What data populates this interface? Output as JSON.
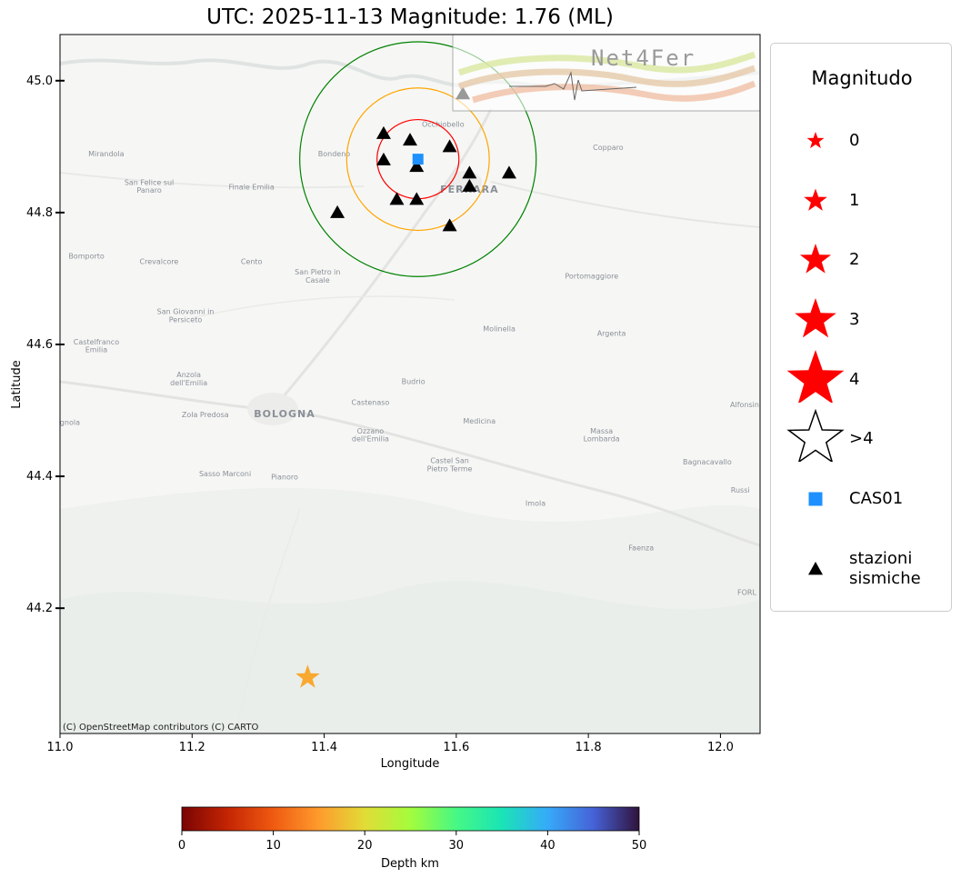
{
  "title": "UTC: 2025-11-13 Magnitude: 1.76 (ML)",
  "axes": {
    "xlabel": "Longitude",
    "ylabel": "Latitude",
    "xlim": [
      11.0,
      12.06
    ],
    "ylim": [
      44.01,
      45.07
    ],
    "xticks": [
      "11.0",
      "11.2",
      "11.4",
      "11.6",
      "11.8",
      "12.0"
    ],
    "xtick_values": [
      11.0,
      11.2,
      11.4,
      11.6,
      11.8,
      12.0
    ],
    "yticks": [
      "44.2",
      "44.4",
      "44.6",
      "44.8",
      "45.0"
    ],
    "ytick_values": [
      44.2,
      44.4,
      44.6,
      44.8,
      45.0
    ]
  },
  "attribution": "(C) OpenStreetMap contributors (C) CARTO",
  "watermark": "Net4Fer",
  "places": [
    {
      "name": "Mirandola",
      "lon": 11.07,
      "lat": 44.885
    },
    {
      "name": "San Felice sul",
      "lon": 11.135,
      "lat": 44.842
    },
    {
      "name": "Panaro",
      "lon": 11.135,
      "lat": 44.83
    },
    {
      "name": "Finale Emilia",
      "lon": 11.29,
      "lat": 44.835
    },
    {
      "name": "Bondeno",
      "lon": 11.415,
      "lat": 44.885
    },
    {
      "name": "Occhiobello",
      "lon": 11.58,
      "lat": 44.93
    },
    {
      "name": "Copparo",
      "lon": 11.83,
      "lat": 44.895
    },
    {
      "name": "Bomporto",
      "lon": 11.04,
      "lat": 44.73
    },
    {
      "name": "Crevalcore",
      "lon": 11.15,
      "lat": 44.722
    },
    {
      "name": "Cento",
      "lon": 11.29,
      "lat": 44.722
    },
    {
      "name": "San Pietro in",
      "lon": 11.39,
      "lat": 44.706
    },
    {
      "name": "Casale",
      "lon": 11.39,
      "lat": 44.694
    },
    {
      "name": "Portomaggiore",
      "lon": 11.805,
      "lat": 44.7
    },
    {
      "name": "San Giovanni in",
      "lon": 11.19,
      "lat": 44.646
    },
    {
      "name": "Persiceto",
      "lon": 11.19,
      "lat": 44.634
    },
    {
      "name": "Molinella",
      "lon": 11.665,
      "lat": 44.62
    },
    {
      "name": "Argenta",
      "lon": 11.835,
      "lat": 44.613
    },
    {
      "name": "Castelfranco",
      "lon": 11.055,
      "lat": 44.6
    },
    {
      "name": "Emilia",
      "lon": 11.055,
      "lat": 44.588
    },
    {
      "name": "Anzola",
      "lon": 11.195,
      "lat": 44.55
    },
    {
      "name": "dell'Emilia",
      "lon": 11.195,
      "lat": 44.538
    },
    {
      "name": "Budrio",
      "lon": 11.535,
      "lat": 44.54
    },
    {
      "name": "Castenaso",
      "lon": 11.47,
      "lat": 44.508
    },
    {
      "name": "Alfonsine",
      "lon": 12.04,
      "lat": 44.505
    },
    {
      "name": "Zola Predosa",
      "lon": 11.22,
      "lat": 44.49
    },
    {
      "name": "Medicina",
      "lon": 11.635,
      "lat": 44.48
    },
    {
      "name": "gnola",
      "lon": 11.015,
      "lat": 44.478
    },
    {
      "name": "Massa",
      "lon": 11.82,
      "lat": 44.465
    },
    {
      "name": "Lombarda",
      "lon": 11.82,
      "lat": 44.453
    },
    {
      "name": "Ozzano",
      "lon": 11.47,
      "lat": 44.465
    },
    {
      "name": "dell'Emilia",
      "lon": 11.47,
      "lat": 44.453
    },
    {
      "name": "Bagnacavallo",
      "lon": 11.98,
      "lat": 44.418
    },
    {
      "name": "Castel San",
      "lon": 11.59,
      "lat": 44.42
    },
    {
      "name": "Pietro Terme",
      "lon": 11.59,
      "lat": 44.408
    },
    {
      "name": "Sasso Marconi",
      "lon": 11.25,
      "lat": 44.4
    },
    {
      "name": "Pianoro",
      "lon": 11.34,
      "lat": 44.395
    },
    {
      "name": "Russi",
      "lon": 12.03,
      "lat": 44.375
    },
    {
      "name": "Imola",
      "lon": 11.72,
      "lat": 44.355
    },
    {
      "name": "Faenza",
      "lon": 11.88,
      "lat": 44.288
    },
    {
      "name": "FORL",
      "lon": 12.04,
      "lat": 44.22
    }
  ],
  "big_places": [
    {
      "name": "BOLOGNA",
      "lon": 11.34,
      "lat": 44.49
    },
    {
      "name": "FERRARA",
      "lon": 11.62,
      "lat": 44.83
    }
  ],
  "stations": [
    {
      "lon": 11.49,
      "lat": 44.92
    },
    {
      "lon": 11.53,
      "lat": 44.91
    },
    {
      "lon": 11.59,
      "lat": 44.9
    },
    {
      "lon": 11.49,
      "lat": 44.88
    },
    {
      "lon": 11.54,
      "lat": 44.87
    },
    {
      "lon": 11.62,
      "lat": 44.86
    },
    {
      "lon": 11.68,
      "lat": 44.86
    },
    {
      "lon": 11.62,
      "lat": 44.84
    },
    {
      "lon": 11.51,
      "lat": 44.82
    },
    {
      "lon": 11.54,
      "lat": 44.82
    },
    {
      "lon": 11.42,
      "lat": 44.8
    },
    {
      "lon": 11.59,
      "lat": 44.78
    },
    {
      "lon": 11.61,
      "lat": 44.98
    }
  ],
  "cas01": {
    "lon": 11.542,
    "lat": 44.881,
    "color": "#1e90ff"
  },
  "circles": [
    {
      "color": "#ff0000",
      "lon_r": 0.062,
      "lat_r": 0.06
    },
    {
      "color": "#ffa500",
      "lon_r": 0.108,
      "lat_r": 0.108
    },
    {
      "color": "#008000",
      "lon_r": 0.179,
      "lat_r": 0.178
    }
  ],
  "event": {
    "lon": 11.375,
    "lat": 44.095,
    "color": "#f9a830",
    "depth_km": 15
  },
  "legend": {
    "title": "Magnitudo",
    "items": [
      {
        "label": "0",
        "symbol": "star",
        "size": 20,
        "color": "#ff0000"
      },
      {
        "label": "1",
        "symbol": "star",
        "size": 27,
        "color": "#ff0000"
      },
      {
        "label": "2",
        "symbol": "star",
        "size": 36,
        "color": "#ff0000"
      },
      {
        "label": "3",
        "symbol": "star",
        "size": 48,
        "color": "#ff0000"
      },
      {
        "label": "4",
        "symbol": "star",
        "size": 66,
        "color": "#ff0000"
      },
      {
        "label": ">4",
        "symbol": "star-outline",
        "size": 66,
        "color": "#000000"
      },
      {
        "label": "CAS01",
        "symbol": "square",
        "size": 15,
        "color": "#1e90ff"
      },
      {
        "label": "stazioni\nsismiche",
        "symbol": "triangle",
        "size": 16,
        "color": "#000000"
      }
    ]
  },
  "colorbar": {
    "label": "Depth km",
    "ticks": [
      "0",
      "10",
      "20",
      "30",
      "40",
      "50"
    ],
    "tick_values": [
      0,
      10,
      20,
      30,
      40,
      50
    ],
    "range": [
      0,
      50
    ],
    "colormap": "turbo_r"
  }
}
